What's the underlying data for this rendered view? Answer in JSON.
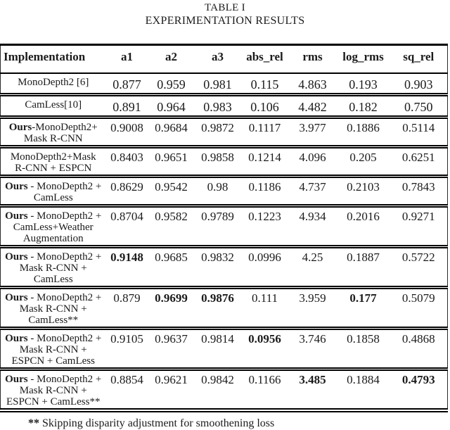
{
  "page": {
    "table_number": "TABLE I",
    "table_title": "EXPERIMENTATION RESULTS"
  },
  "table": {
    "columns": [
      "Implementation",
      "a1",
      "a2",
      "a3",
      "abs_rel",
      "rms",
      "log_rms",
      "sq_rel"
    ],
    "rows": [
      {
        "label_lines": [
          [
            "",
            "MonoDepth2 [6]"
          ]
        ],
        "values": [
          "0.877",
          "0.959",
          "0.981",
          "0.115",
          "4.863",
          "0.193",
          "0.903"
        ],
        "bold": []
      },
      {
        "label_lines": [
          [
            "",
            "CamLess[10]"
          ]
        ],
        "values": [
          "0.891",
          "0.964",
          "0.983",
          "0.106",
          "4.482",
          "0.182",
          "0.750"
        ],
        "bold": []
      },
      {
        "label_lines": [
          [
            "Ours",
            "-MonoDepth2+"
          ],
          [
            "",
            "Mask R-CNN"
          ]
        ],
        "values": [
          "0.9008",
          "0.9684",
          "0.9872",
          "0.1117",
          "3.977",
          "0.1886",
          "0.5114"
        ],
        "bold": []
      },
      {
        "label_lines": [
          [
            "",
            "MonoDepth2+Mask"
          ],
          [
            "",
            "R-CNN + ESPCN"
          ]
        ],
        "values": [
          "0.8403",
          "0.9651",
          "0.9858",
          "0.1214",
          "4.096",
          "0.205",
          "0.6251"
        ],
        "bold": []
      },
      {
        "label_lines": [
          [
            "Ours",
            " - MonoDepth2 +"
          ],
          [
            "",
            "CamLess"
          ]
        ],
        "values": [
          "0.8629",
          "0.9542",
          "0.98",
          "0.1186",
          "4.737",
          "0.2103",
          "0.7843"
        ],
        "bold": []
      },
      {
        "label_lines": [
          [
            "Ours",
            " - MonoDepth2 +"
          ],
          [
            "",
            "CamLess+Weather"
          ],
          [
            "",
            "Augmentation"
          ]
        ],
        "values": [
          "0.8704",
          "0.9582",
          "0.9789",
          "0.1223",
          "4.934",
          "0.2016",
          "0.9271"
        ],
        "bold": []
      },
      {
        "label_lines": [
          [
            "Ours",
            " - MonoDepth2 +"
          ],
          [
            "",
            "Mask R-CNN +"
          ],
          [
            "",
            "CamLess"
          ]
        ],
        "values": [
          "0.9148",
          "0.9685",
          "0.9832",
          "0.0996",
          "4.25",
          "0.1887",
          "0.5722"
        ],
        "bold": [
          0
        ]
      },
      {
        "label_lines": [
          [
            "Ours",
            " - MonoDepth2 +"
          ],
          [
            "",
            "Mask R-CNN +"
          ],
          [
            "",
            "CamLess**"
          ]
        ],
        "values": [
          "0.879",
          "0.9699",
          "0.9876",
          "0.111",
          "3.959",
          "0.177",
          "0.5079"
        ],
        "bold": [
          1,
          2,
          5
        ]
      },
      {
        "label_lines": [
          [
            "Ours",
            " - MonoDepth2 +"
          ],
          [
            "",
            "Mask R-CNN +"
          ],
          [
            "",
            "ESPCN + CamLess"
          ]
        ],
        "values": [
          "0.9105",
          "0.9637",
          "0.9814",
          "0.0956",
          "3.746",
          "0.1858",
          "0.4868"
        ],
        "bold": [
          3
        ]
      },
      {
        "label_lines": [
          [
            "Ours",
            " - MonoDepth2 +"
          ],
          [
            "",
            "Mask R-CNN +"
          ],
          [
            "",
            "ESPCN + CamLess**"
          ]
        ],
        "values": [
          "0.8854",
          "0.9621",
          "0.9842",
          "0.1166",
          "3.485",
          "0.1884",
          "0.4793"
        ],
        "bold": [
          4,
          6
        ]
      }
    ]
  },
  "footnote": {
    "marker": "**",
    "text": " Skipping disparity adjustment for smoothening loss"
  }
}
